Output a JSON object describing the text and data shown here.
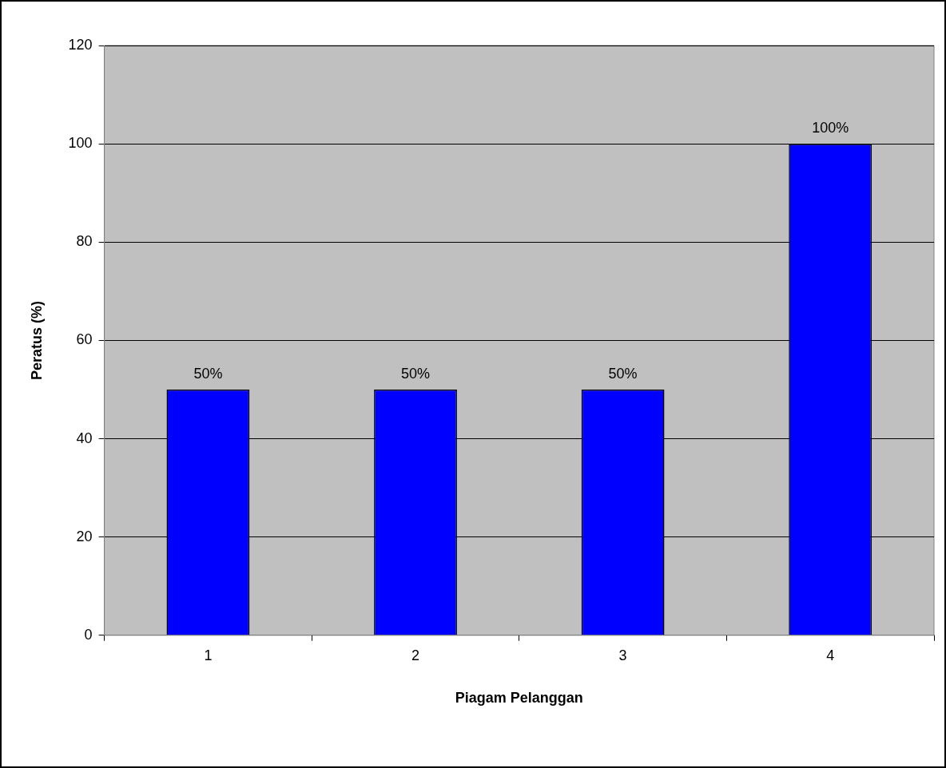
{
  "chart_data": {
    "type": "bar",
    "xlabel": "Piagam Pelanggan",
    "ylabel": "Peratus (%)",
    "categories": [
      "1",
      "2",
      "3",
      "4"
    ],
    "values": [
      50,
      50,
      50,
      100
    ],
    "color": "#0000ff",
    "value_labels": [
      "50%",
      "50%",
      "50%",
      "100%"
    ],
    "ylim": [
      0,
      120
    ],
    "yticks": [
      0,
      20,
      40,
      60,
      80,
      100,
      120
    ],
    "grid": "y",
    "legend": false
  }
}
